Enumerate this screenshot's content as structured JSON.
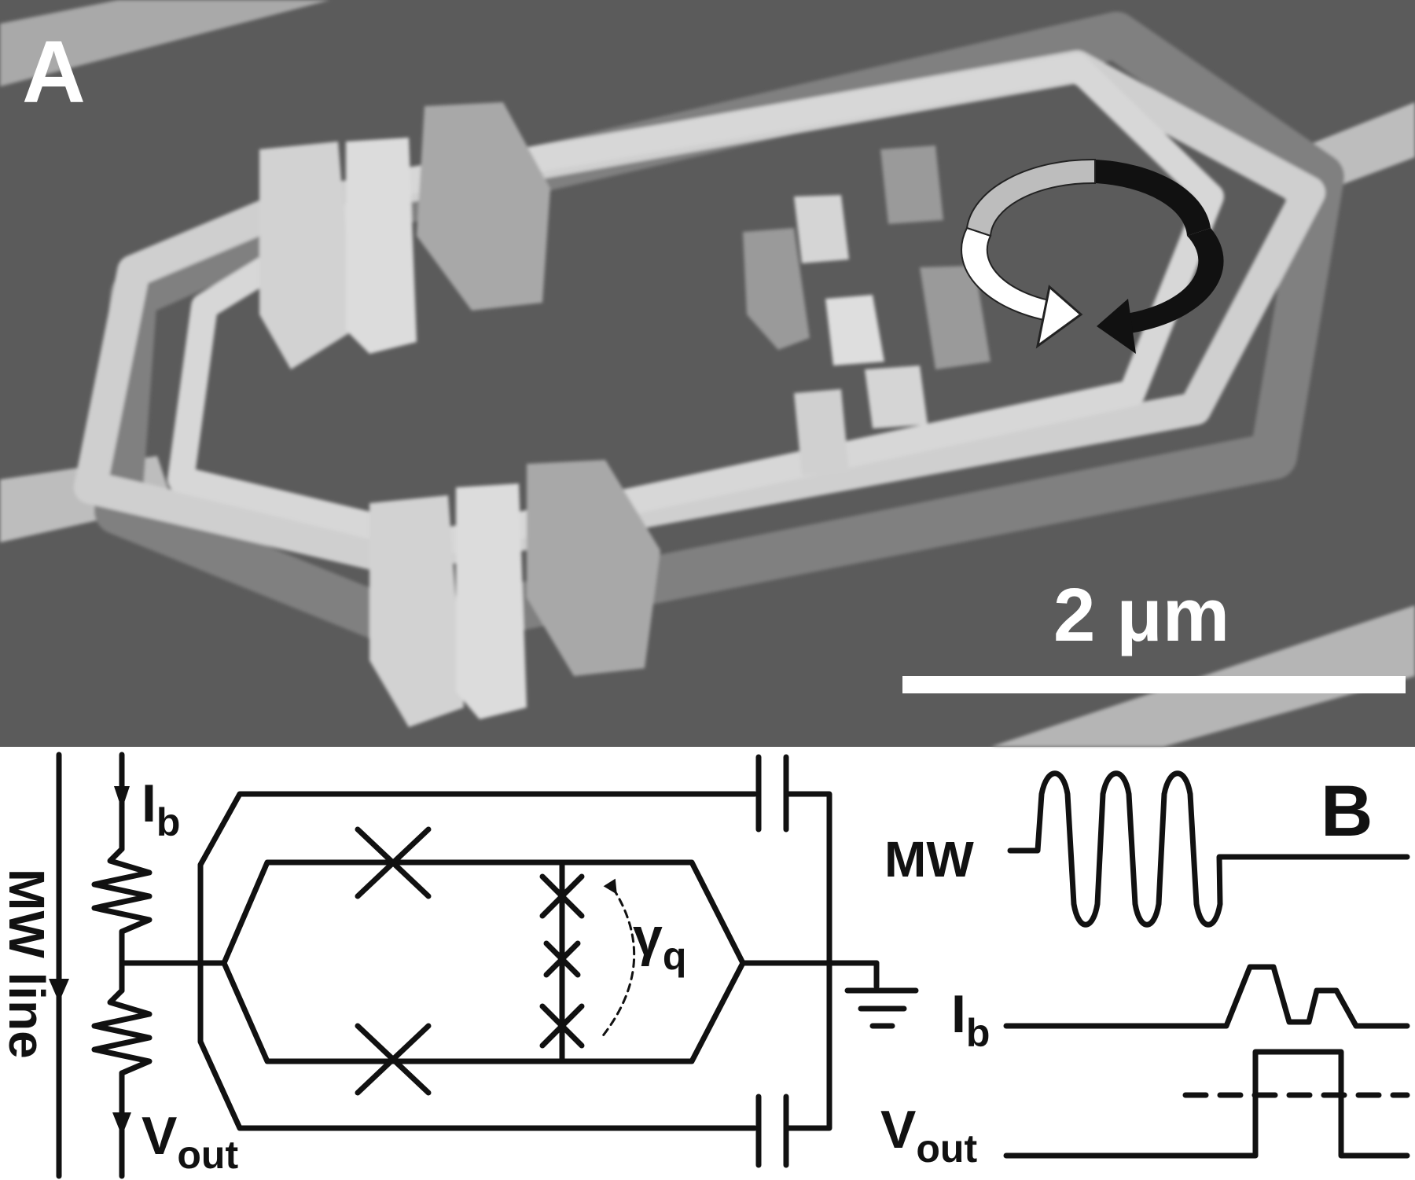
{
  "panel_a": {
    "label": "A",
    "scale_bar_text": "2 μm"
  },
  "panel_b": {
    "label": "B",
    "circuit": {
      "mw_line_label": "MW line",
      "bias_current_main": "I",
      "bias_current_sub": "b",
      "output_main": "V",
      "output_sub": "out",
      "phase_main": "γ",
      "phase_sub": "q"
    },
    "timing": {
      "mw_label": "MW",
      "ib_main": "I",
      "ib_sub": "b",
      "vout_main": "V",
      "vout_sub": "out"
    }
  },
  "colors": {
    "sem_background": "#5b5b5b",
    "sem_structure": "#d2d2d2",
    "line": "#111111",
    "panel_b_background": "#ffffff"
  }
}
